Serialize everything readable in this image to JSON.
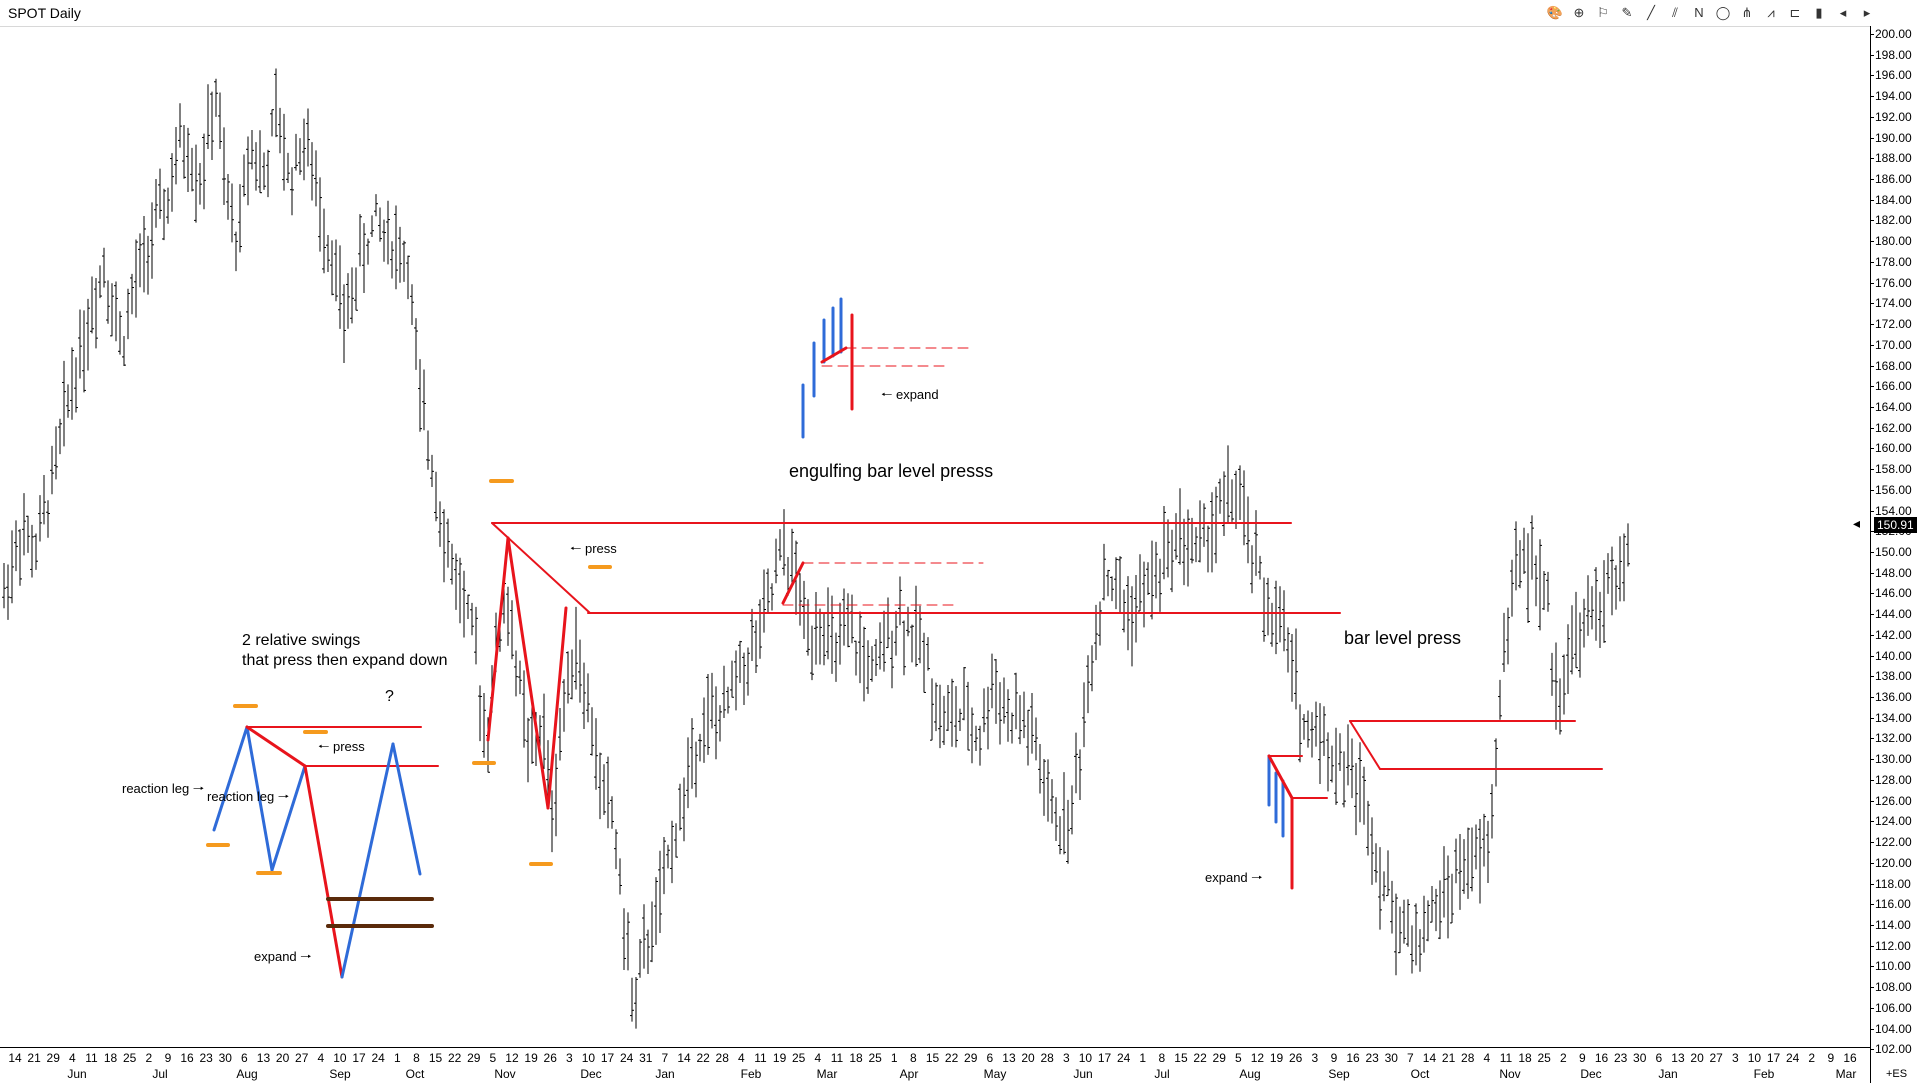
{
  "window": {
    "title": "SPOT Daily"
  },
  "toolbar": {
    "tools": [
      "palette-icon",
      "crosshair-icon",
      "flag-icon",
      "pencil-icon",
      "trendline-icon",
      "parallel-lines-icon",
      "text-n-icon",
      "circle-icon",
      "fib-icon",
      "zigzag-icon",
      "bracket-icon",
      "bar-icon",
      "arrow-left-icon",
      "arrow-right-icon"
    ],
    "labels": [
      "🎨",
      "⊕",
      "⚐",
      "✎",
      "╱",
      "⫽",
      "N",
      "◯",
      "⋔",
      "⩘",
      "⊏",
      "▮",
      "◂",
      "▸"
    ]
  },
  "price_axis": {
    "labels": [
      "200.00",
      "198.00",
      "196.00",
      "194.00",
      "192.00",
      "190.00",
      "188.00",
      "186.00",
      "184.00",
      "182.00",
      "180.00",
      "178.00",
      "176.00",
      "174.00",
      "172.00",
      "170.00",
      "168.00",
      "166.00",
      "164.00",
      "162.00",
      "160.00",
      "158.00",
      "156.00",
      "154.00",
      "152.00",
      "150.00",
      "148.00",
      "146.00",
      "144.00",
      "142.00",
      "140.00",
      "138.00",
      "136.00",
      "134.00",
      "132.00",
      "130.00",
      "128.00",
      "126.00",
      "124.00",
      "122.00",
      "120.00",
      "118.00",
      "116.00",
      "114.00",
      "112.00",
      "110.00",
      "108.00",
      "106.00",
      "104.00",
      "102.00"
    ],
    "last_price": "150.91",
    "corner": "+ES"
  },
  "date_axis": {
    "days": [
      "14",
      "21",
      "29",
      "4",
      "11",
      "18",
      "25",
      "2",
      "9",
      "16",
      "23",
      "30",
      "6",
      "13",
      "20",
      "27",
      "4",
      "10",
      "17",
      "24",
      "1",
      "8",
      "15",
      "22",
      "29",
      "5",
      "12",
      "19",
      "26",
      "3",
      "10",
      "17",
      "24",
      "31",
      "7",
      "14",
      "22",
      "28",
      "4",
      "11",
      "19",
      "25",
      "4",
      "11",
      "18",
      "25",
      "1",
      "8",
      "15",
      "22",
      "29",
      "6",
      "13",
      "20",
      "28",
      "3",
      "10",
      "17",
      "24",
      "1",
      "8",
      "15",
      "22",
      "29",
      "5",
      "12",
      "19",
      "26",
      "3",
      "9",
      "16",
      "23",
      "30",
      "7",
      "14",
      "21",
      "28",
      "4",
      "11",
      "18",
      "25",
      "2",
      "9",
      "16",
      "23",
      "30",
      "6",
      "13",
      "20",
      "27",
      "3",
      "10",
      "17",
      "24",
      "2",
      "9",
      "16"
    ],
    "months": [
      "Jun",
      "Jul",
      "Aug",
      "Sep",
      "Oct",
      "Nov",
      "Dec",
      "Jan",
      "Feb",
      "Mar",
      "Apr",
      "May",
      "Jun",
      "Jul",
      "Aug",
      "Sep",
      "Oct",
      "Nov",
      "Dec",
      "Jan",
      "Feb",
      "Mar"
    ]
  },
  "annotations": {
    "two_swings_line1": "2 relative swings",
    "two_swings_line2": "that press then expand down",
    "question": "?",
    "press_left": "🠐 press",
    "reaction_leg_1": "reaction leg 🠒",
    "reaction_leg_2": "reaction leg 🠒",
    "expand_left": "expand 🠒",
    "press_mid": "🠐 press",
    "expand_top": "🠐 expand",
    "engulfing": "engulfing bar level presss",
    "bar_level_press": "bar level press",
    "expand_right": "expand 🠒"
  },
  "colors": {
    "price_bars": "#000000",
    "level_line": "#e8141c",
    "swing_blue": "#2f6bd8",
    "swing_red": "#e8141c",
    "marker_orange": "#f59a1e",
    "level_brown": "#5a2a0a"
  }
}
